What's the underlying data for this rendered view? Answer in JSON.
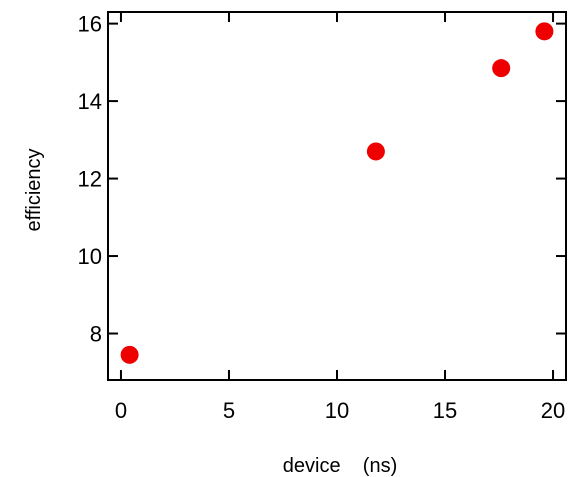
{
  "chart_data": {
    "type": "scatter",
    "xlabel": "device    (ns)",
    "ylabel": "efficiency",
    "xlim": [
      -0.6,
      20.6
    ],
    "ylim": [
      6.8,
      16.3
    ],
    "x_ticks": [
      0,
      5,
      10,
      15,
      20
    ],
    "x_tick_labels": [
      "0",
      "5",
      "10",
      "15",
      "20"
    ],
    "y_ticks": [
      8,
      10,
      12,
      14,
      16
    ],
    "y_tick_labels": [
      "8",
      "10",
      "12",
      "14",
      "16"
    ],
    "grid": false,
    "marker_color": "#ee0000",
    "series": [
      {
        "x": [
          0.4,
          11.8,
          17.6,
          19.6
        ],
        "y": [
          7.45,
          12.7,
          14.85,
          15.8
        ]
      }
    ]
  }
}
